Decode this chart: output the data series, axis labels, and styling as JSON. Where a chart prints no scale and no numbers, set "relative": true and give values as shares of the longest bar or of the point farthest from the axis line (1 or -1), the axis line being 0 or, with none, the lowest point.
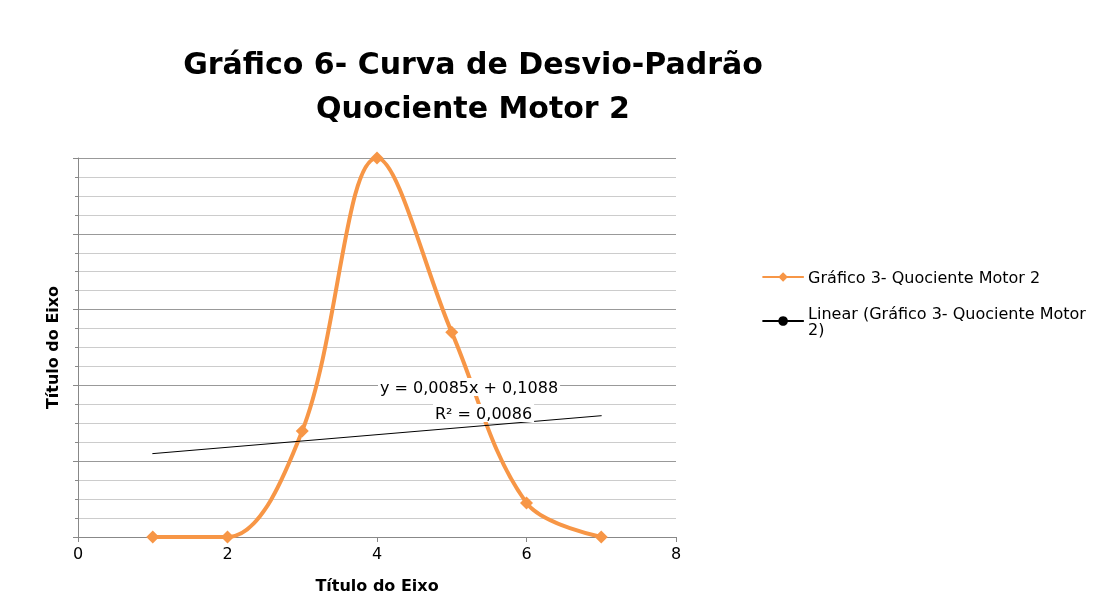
{
  "chart_data": {
    "type": "line",
    "title": "Gráfico 6- Curva de Desvio-Padrão\nQuociente Motor 2",
    "xlabel": "Título do Eixo",
    "ylabel": "Título do Eixo",
    "relative": true,
    "xlim": [
      0,
      8
    ],
    "xticks": [
      0,
      2,
      4,
      6,
      8
    ],
    "tick_labels": "x",
    "grid": "y",
    "legend": "right",
    "marker": "diamond",
    "annotations": [
      "y = 0,0085x + 0,1088",
      "R² = 0,0086"
    ],
    "series": [
      {
        "name": "Gráfico 3- Quociente Motor 2",
        "color": "#f79646",
        "x": [
          1,
          2,
          3,
          4,
          5,
          6,
          7
        ],
        "values": [
          0,
          0,
          0.28,
          1,
          0.54,
          0.09,
          0
        ]
      },
      {
        "name": "Linear (Gráfico 3- Quociente Motor 2)",
        "color": "#000000",
        "type": "line",
        "marker": "none",
        "x": [
          1,
          7
        ],
        "values": [
          0.22,
          0.32
        ]
      }
    ]
  }
}
